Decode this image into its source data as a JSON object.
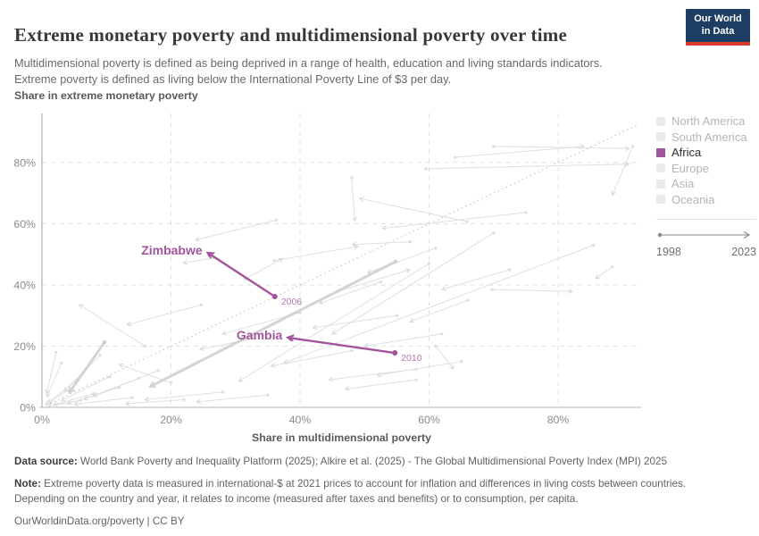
{
  "header": {
    "title": "Extreme monetary poverty and multidimensional poverty over time",
    "subtitle": "Multidimensional poverty is defined as being deprived in a range of health, education and living standards indicators. Extreme poverty is defined as living below the International Poverty Line of $3 per day.",
    "logo": {
      "line1": "Our World",
      "line2": "in Data",
      "bg_color": "#1d3d63",
      "accent_color": "#d93a2b"
    }
  },
  "chart_data": {
    "type": "scatter",
    "title": "Extreme monetary poverty and multidimensional poverty over time",
    "xlabel": "Share in multidimensional poverty",
    "ylabel": "Share in extreme monetary poverty",
    "xlim": [
      0,
      92.9
    ],
    "ylim": [
      0,
      96
    ],
    "x_tick_values": [
      0,
      20,
      40,
      60,
      80
    ],
    "x_ticks": [
      "0%",
      "20%",
      "40%",
      "60%",
      "80%"
    ],
    "y_tick_values": [
      0,
      20,
      40,
      60,
      80
    ],
    "y_ticks": [
      "0%",
      "20%",
      "40%",
      "60%",
      "80%"
    ],
    "grid": true,
    "legend_position": "right",
    "highlight_color": "#a2559c",
    "identity_line": {
      "from": [
        0,
        0
      ],
      "to": [
        92.5,
        92.5
      ],
      "style": "dotted"
    },
    "legend": {
      "entries": [
        {
          "label": "North America",
          "color": "#ebebeb",
          "highlighted": false
        },
        {
          "label": "South America",
          "color": "#ebebeb",
          "highlighted": false
        },
        {
          "label": "Africa",
          "color": "#a2559c",
          "highlighted": true
        },
        {
          "label": "Europe",
          "color": "#ebebeb",
          "highlighted": false
        },
        {
          "label": "Asia",
          "color": "#ebebeb",
          "highlighted": false
        },
        {
          "label": "Oceania",
          "color": "#ebebeb",
          "highlighted": false
        }
      ]
    },
    "time_axis": {
      "start": "1998",
      "end": "2023"
    },
    "series": [
      {
        "name": "Zimbabwe",
        "color": "#a2559c",
        "start": {
          "x": 36.1,
          "y": 36.2,
          "year_label": "2006"
        },
        "end": {
          "x": 25.7,
          "y": 50.5
        }
      },
      {
        "name": "Gambia",
        "color": "#a2559c",
        "start": {
          "x": 54.7,
          "y": 17.8,
          "year_label": "2010"
        },
        "end": {
          "x": 38.1,
          "y": 22.8
        }
      }
    ],
    "background_series": [
      [
        5.5,
        9,
        1,
        1.5
      ],
      [
        8,
        4.5,
        1.8,
        0.8
      ],
      [
        3,
        14.5,
        0.8,
        3.5
      ],
      [
        10.5,
        10,
        3,
        2.2
      ],
      [
        6,
        2.3,
        1,
        0.4
      ],
      [
        12,
        6.5,
        4,
        1.2
      ],
      [
        2.2,
        18,
        0.7,
        4.5
      ],
      [
        15,
        9.5,
        6.5,
        2.6
      ],
      [
        9,
        17,
        3.4,
        5.2
      ],
      [
        4,
        5.5,
        0.6,
        1
      ],
      [
        14,
        3.2,
        5,
        1
      ],
      [
        18,
        12,
        8,
        3.6
      ],
      [
        16,
        20,
        5.8,
        33.5
      ],
      [
        20,
        8,
        12,
        14
      ],
      [
        28,
        5,
        16,
        2.5
      ],
      [
        35,
        4,
        24,
        1.8
      ],
      [
        22,
        2.5,
        13,
        1.2
      ],
      [
        36,
        48,
        49,
        52.6
      ],
      [
        31.5,
        42,
        37.3,
        48.6
      ],
      [
        24.7,
        33.5,
        13.2,
        27
      ],
      [
        40,
        31,
        28,
        24
      ],
      [
        33,
        22.5,
        24.5,
        19
      ],
      [
        46,
        38,
        57,
        45
      ],
      [
        52.5,
        41,
        43,
        34
      ],
      [
        61,
        52,
        50.5,
        44
      ],
      [
        55,
        30,
        42,
        26
      ],
      [
        48,
        18.5,
        35.5,
        13.5
      ],
      [
        62,
        24,
        50,
        20
      ],
      [
        58,
        12.5,
        44.5,
        9
      ],
      [
        66,
        35,
        57,
        28
      ],
      [
        72.5,
        45,
        62,
        38.5
      ],
      [
        48,
        75,
        48.5,
        61
      ],
      [
        36.3,
        61.2,
        23.8,
        54.7
      ],
      [
        26.6,
        48.8,
        21.9,
        47.2
      ],
      [
        85.5,
        53,
        37.5,
        14.5
      ],
      [
        60,
        47,
        30.5,
        8.5
      ],
      [
        70,
        57,
        45,
        24
      ],
      [
        64,
        81.7,
        84,
        85.3
      ],
      [
        59.5,
        78,
        91,
        79.5
      ],
      [
        70,
        85.3,
        91,
        84.6
      ],
      [
        65.9,
        60.7,
        49.2,
        68.3
      ],
      [
        75,
        63.7,
        52.8,
        58.5
      ],
      [
        57.1,
        54.1,
        48.1,
        53.2
      ],
      [
        91.6,
        85.3,
        88.4,
        69.4
      ],
      [
        88.4,
        45.9,
        85.8,
        42.1
      ],
      [
        69.8,
        38.5,
        82.2,
        37.9
      ],
      [
        65,
        15,
        52,
        10.5
      ],
      [
        58,
        9,
        47,
        6
      ],
      [
        61,
        20,
        63.8,
        12.6
      ]
    ],
    "bold_background_series": [
      [
        54.8,
        47.6,
        16.7,
        6.7
      ],
      [
        9.7,
        21.3,
        4.2,
        4.7
      ]
    ]
  },
  "footer": {
    "data_source_label": "Data source:",
    "data_source": " World Bank Poverty and Inequality Platform (2025); Alkire et al. (2025) - The Global Multidimensional Poverty Index (MPI) 2025",
    "note_label": "Note:",
    "note": " Extreme poverty data is measured in international-$ at 2021 prices to account for inflation and differences in living costs between countries. Depending on the country and year, it relates to income (measured after taxes and benefits) or to consumption, per capita.",
    "link": "OurWorldinData.org/poverty | CC BY"
  }
}
